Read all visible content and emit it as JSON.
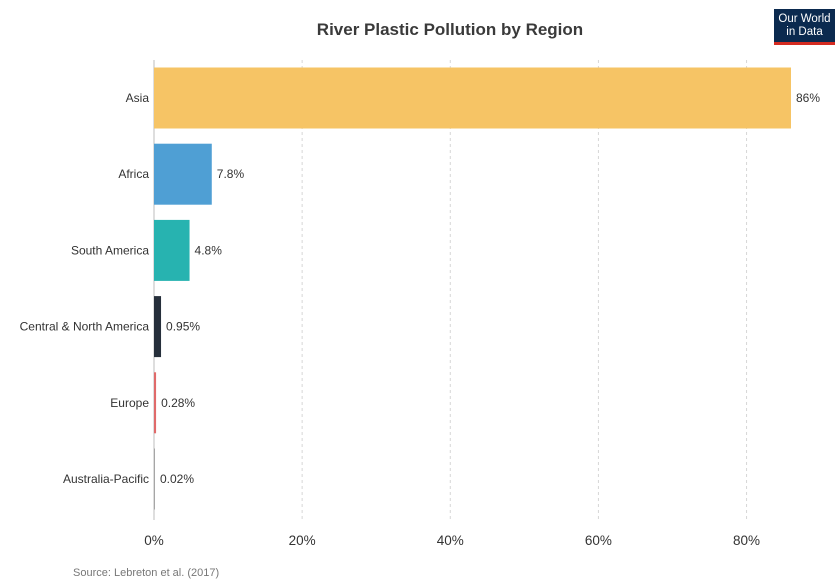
{
  "chart_data": {
    "type": "bar",
    "orientation": "horizontal",
    "title": "River Plastic Pollution by Region",
    "categories": [
      "Asia",
      "Africa",
      "South America",
      "Central & North America",
      "Europe",
      "Australia-Pacific"
    ],
    "values": [
      86,
      7.8,
      4.8,
      0.95,
      0.28,
      0.02
    ],
    "value_labels": [
      "86%",
      "7.8%",
      "4.8%",
      "0.95%",
      "0.28%",
      "0.02%"
    ],
    "colors": [
      "#f6c465",
      "#4f9fd4",
      "#27b3b0",
      "#262f3b",
      "#e06a6a",
      "#a6a6a6"
    ],
    "xlim": [
      0,
      86
    ],
    "x_ticks": [
      0,
      20,
      40,
      60,
      80
    ],
    "x_tick_labels": [
      "0%",
      "20%",
      "40%",
      "60%",
      "80%"
    ],
    "grid": "vertical-dashed",
    "xlabel": "",
    "ylabel": ""
  },
  "logo": {
    "line1": "Our World",
    "line2": "in Data",
    "bg_color": "#0b2a4f",
    "accent_color": "#d42b21"
  },
  "source": "Source: Lebreton et al. (2017)"
}
